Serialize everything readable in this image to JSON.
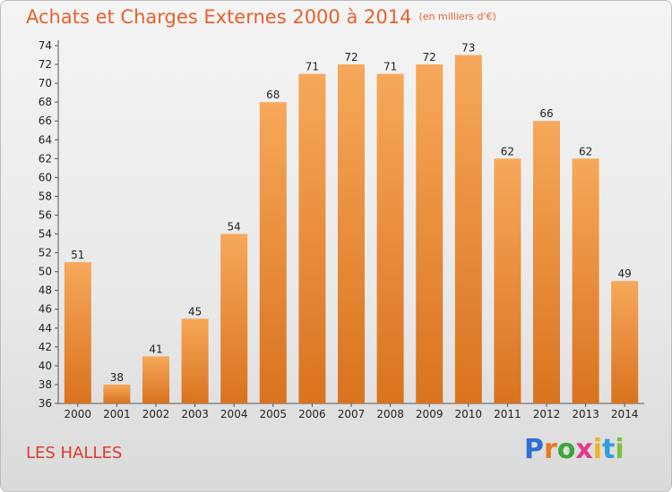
{
  "title": "Achats et Charges Externes 2000 à 2014",
  "unit": "(en milliers d'€)",
  "commune": "LES HALLES",
  "brand": {
    "letters": [
      "P",
      "r",
      "o",
      "x",
      "i",
      "t",
      "i"
    ],
    "colors": [
      "#2f6fd6",
      "#e7781e",
      "#3aa63a",
      "#e23a8a",
      "#f0b31a",
      "#2f9de0",
      "#7bc043"
    ]
  },
  "colors": {
    "bar_top": "#f7a85a",
    "bar_bottom": "#d9731e",
    "title": "#e6612c",
    "commune": "#e03a2e"
  },
  "chart_data": {
    "type": "bar",
    "title": "Achats et Charges Externes 2000 à 2014",
    "subtitle": "(en milliers d'€)",
    "categories": [
      "2000",
      "2001",
      "2002",
      "2003",
      "2004",
      "2005",
      "2006",
      "2007",
      "2008",
      "2009",
      "2010",
      "2011",
      "2012",
      "2013",
      "2014"
    ],
    "values": [
      51,
      38,
      41,
      45,
      54,
      68,
      71,
      72,
      71,
      72,
      73,
      62,
      66,
      62,
      49
    ],
    "ylim": [
      36,
      74
    ],
    "yticks": [
      36,
      38,
      40,
      42,
      44,
      46,
      48,
      50,
      52,
      54,
      56,
      58,
      60,
      62,
      64,
      66,
      68,
      70,
      72,
      74
    ],
    "grid": false,
    "xlabel": "",
    "ylabel": ""
  }
}
